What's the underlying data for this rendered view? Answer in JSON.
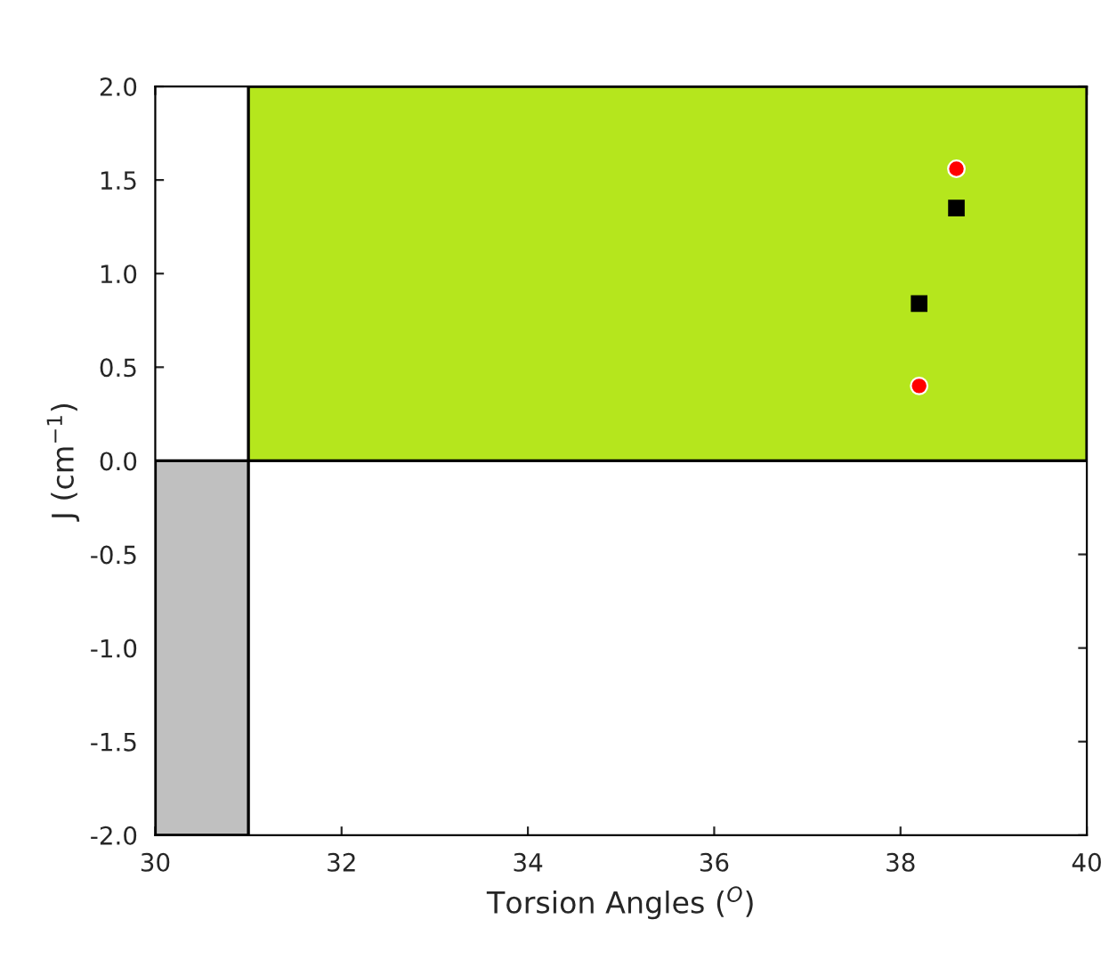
{
  "chart_data": {
    "type": "scatter",
    "xlabel": "Torsion Angles ($^{O}$)",
    "ylabel": "J (cm$^{−1}$)",
    "xlim": [
      30,
      40
    ],
    "xticks": [
      30,
      32,
      34,
      36,
      38,
      40
    ],
    "ylim": [
      -2,
      2
    ],
    "yticks": [
      {
        "value": -2,
        "label": "-2.0"
      },
      {
        "value": -1.5,
        "label": "-1.5"
      },
      {
        "value": -1,
        "label": "-1.0"
      },
      {
        "value": -0.5,
        "label": "-0.5"
      },
      {
        "value": 0,
        "label": "0.0"
      },
      {
        "value": 0.5,
        "label": "0.5"
      },
      {
        "value": 1,
        "label": "1.0"
      },
      {
        "value": 1.5,
        "label": "1.5"
      },
      {
        "value": 2,
        "label": "2.0"
      }
    ],
    "grid": false,
    "series": [
      {
        "type": "area",
        "color": "#b5e61d",
        "x": [
          31,
          40
        ],
        "values": [
          2,
          2
        ]
      },
      {
        "type": "area",
        "color": "#c0c0c0",
        "x": [
          30,
          31
        ],
        "values": [
          -2,
          -2
        ]
      },
      {
        "marker": "square",
        "color": "#000000",
        "x": [
          38.2,
          38.6
        ],
        "values": [
          0.84,
          1.35
        ]
      },
      {
        "marker": "circle",
        "color": "#ff0000",
        "x": [
          38.2,
          38.6
        ],
        "values": [
          0.4,
          1.56
        ]
      }
    ]
  }
}
